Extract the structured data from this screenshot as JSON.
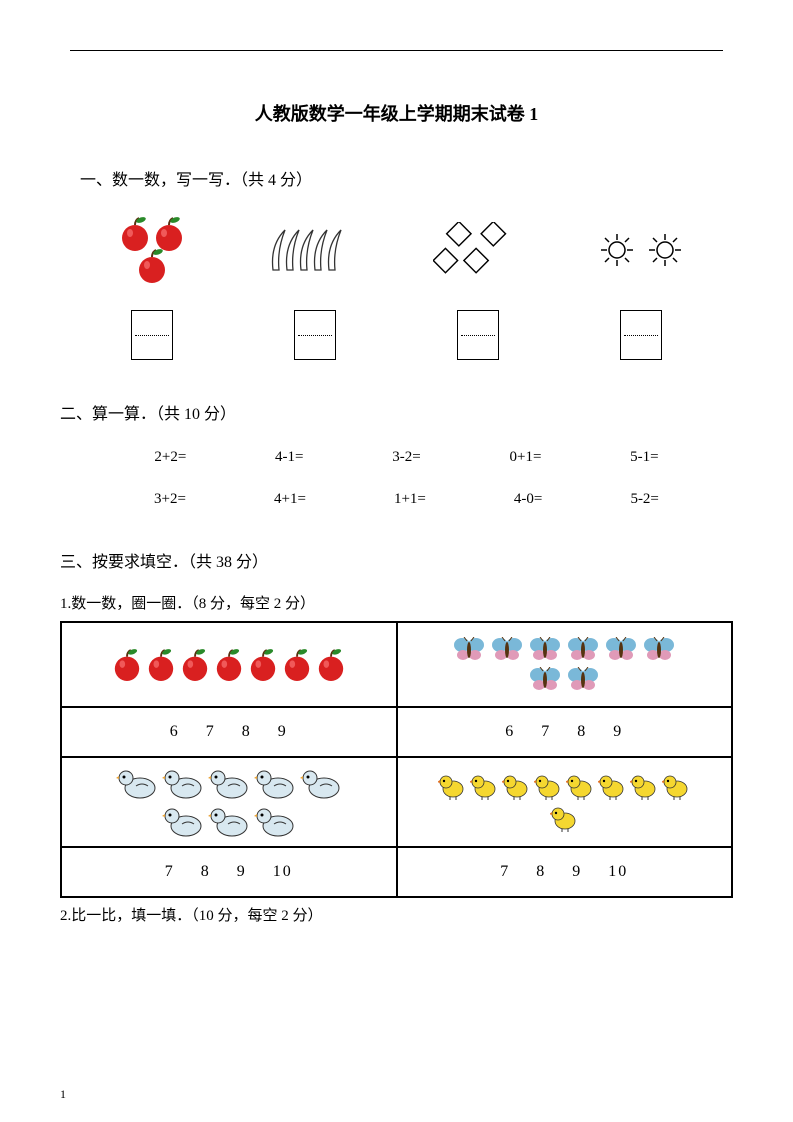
{
  "title": "人教版数学一年级上学期期末试卷 1",
  "section1": {
    "header": "一、数一数，写一写．（共 4 分）",
    "items": [
      {
        "name": "apples",
        "count": 3,
        "color": "#d92020",
        "leaf": "#2a8a2a"
      },
      {
        "name": "bananas",
        "count": 5,
        "color": "#333333"
      },
      {
        "name": "diamonds",
        "count": 4,
        "color": "#000000"
      },
      {
        "name": "suns",
        "count": 2,
        "color": "#000000"
      }
    ]
  },
  "section2": {
    "header": "二、算一算．（共 10 分）",
    "row1": [
      "2+2=",
      "4-1=",
      "3-2=",
      "0+1=",
      "5-1="
    ],
    "row2": [
      "3+2=",
      "4+1=",
      "1+1=",
      "4-0=",
      "5-2="
    ]
  },
  "section3": {
    "header": "三、按要求填空．（共 38 分）",
    "q1": {
      "label": "1.数一数，圈一圈．（8 分，每空 2 分）",
      "cells": [
        {
          "icon": "apple",
          "count": 7,
          "color": "#d92020",
          "leaf": "#2a8a2a"
        },
        {
          "icon": "butterfly",
          "count": 8,
          "color": "#7ab8d8",
          "accent": "#e09ab8"
        },
        {
          "options": [
            "6",
            "7",
            "8",
            "9"
          ]
        },
        {
          "options": [
            "6",
            "7",
            "8",
            "9"
          ]
        },
        {
          "icon": "duck",
          "count": 8,
          "color": "#d8e8f0",
          "beak": "#e8a030"
        },
        {
          "icon": "chick",
          "count": 9,
          "color": "#f5d730",
          "beak": "#e07020"
        },
        {
          "options": [
            "7",
            "8",
            "9",
            "10"
          ]
        },
        {
          "options": [
            "7",
            "8",
            "9",
            "10"
          ]
        }
      ]
    },
    "q2": {
      "label": "2.比一比，填一填．（10 分，每空 2 分）"
    }
  },
  "page_number": "1"
}
